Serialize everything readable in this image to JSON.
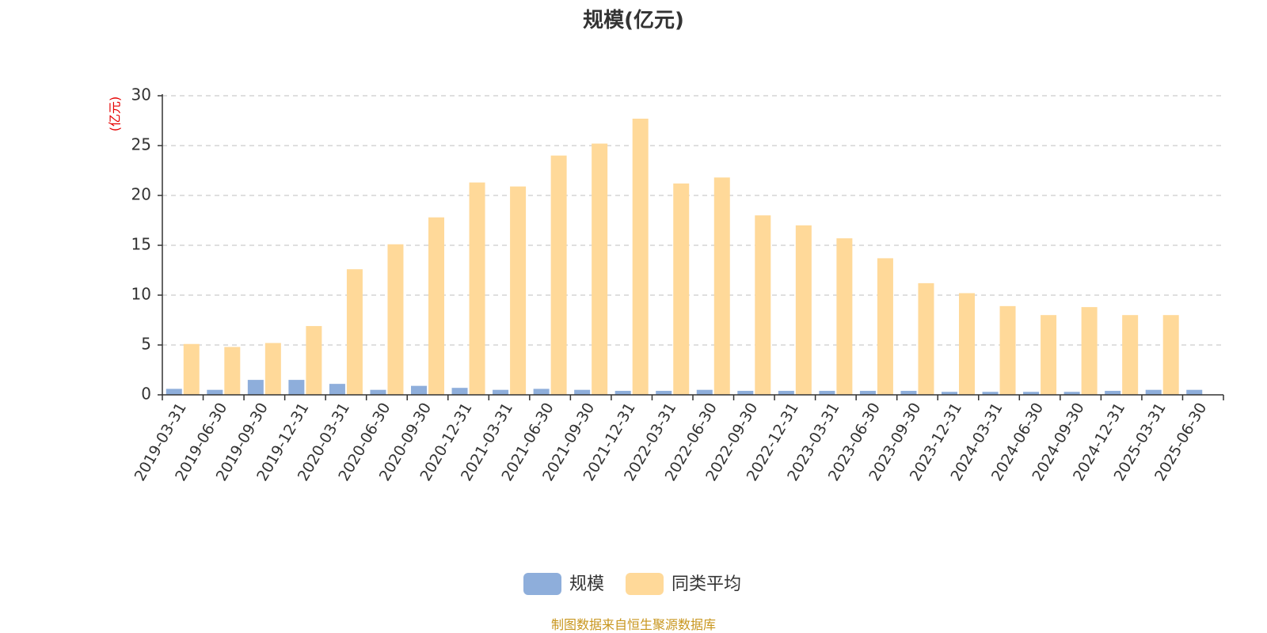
{
  "chart_data": {
    "type": "bar",
    "title": "规模(亿元)",
    "ylabel": "(亿元)",
    "ylim": [
      0,
      30
    ],
    "yticks": [
      0,
      5,
      10,
      15,
      20,
      25,
      30
    ],
    "grid": true,
    "legend_position": "bottom",
    "categories": [
      "2019-03-31",
      "2019-06-30",
      "2019-09-30",
      "2019-12-31",
      "2020-03-31",
      "2020-06-30",
      "2020-09-30",
      "2020-12-31",
      "2021-03-31",
      "2021-06-30",
      "2021-09-30",
      "2021-12-31",
      "2022-03-31",
      "2022-06-30",
      "2022-09-30",
      "2022-12-31",
      "2023-03-31",
      "2023-06-30",
      "2023-09-30",
      "2023-12-31",
      "2024-03-31",
      "2024-06-30",
      "2024-09-30",
      "2024-12-31",
      "2025-03-31",
      "2025-06-30"
    ],
    "series": [
      {
        "name": "规模",
        "color": "#8eaedb",
        "values": [
          0.6,
          0.5,
          1.5,
          1.5,
          1.1,
          0.5,
          0.9,
          0.7,
          0.5,
          0.6,
          0.5,
          0.4,
          0.4,
          0.5,
          0.4,
          0.4,
          0.4,
          0.4,
          0.4,
          0.3,
          0.3,
          0.3,
          0.3,
          0.4,
          0.5,
          0.5
        ]
      },
      {
        "name": "同类平均",
        "color": "#ffd999",
        "values": [
          5.1,
          4.8,
          5.2,
          6.9,
          12.6,
          15.1,
          17.8,
          21.3,
          20.9,
          24.0,
          25.2,
          27.7,
          21.2,
          21.8,
          18.0,
          17.0,
          15.7,
          13.7,
          11.2,
          10.2,
          8.9,
          8.0,
          8.8,
          8.0,
          8.0,
          null
        ]
      }
    ],
    "source_note": "制图数据来自恒生聚源数据库"
  }
}
